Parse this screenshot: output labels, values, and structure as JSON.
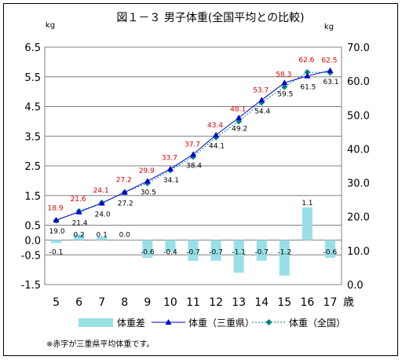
{
  "chart_data": {
    "type": "bar+line",
    "title": "図１－３ 男子体重(全国平均との比較)",
    "left_unit": "kg",
    "right_unit": "kg",
    "x_unit": "歳",
    "categories": [
      5,
      6,
      7,
      8,
      9,
      10,
      11,
      12,
      13,
      14,
      15,
      16,
      17
    ],
    "left_axis": {
      "ticks": [
        "6.5",
        "5.5",
        "4.5",
        "3.5",
        "2.5",
        "1.5",
        "0.5",
        "0.0",
        "-0.5",
        "-1.5"
      ],
      "range": [
        -1.5,
        6.5
      ]
    },
    "right_axis": {
      "ticks": [
        "70.0",
        "60.0",
        "50.0",
        "40.0",
        "30.0",
        "20.0",
        "10.0",
        "0.0"
      ],
      "range": [
        0,
        70
      ]
    },
    "series": [
      {
        "name": "体重差",
        "kind": "bar",
        "axis": "left",
        "values": [
          -0.1,
          0.2,
          0.1,
          0.0,
          -0.6,
          -0.4,
          -0.7,
          -0.7,
          -1.1,
          -0.7,
          -1.2,
          1.1,
          -0.6
        ],
        "labels": [
          "-0.1",
          "0.2",
          "0.1",
          "0.0",
          "-0.6",
          "-0.4",
          "-0.7",
          "-0.7",
          "-1.1",
          "-0.7",
          "-1.2",
          "1.1",
          "-0.6"
        ],
        "color": "#99e0e6"
      },
      {
        "name": "体重（三重県）",
        "kind": "line",
        "axis": "right",
        "values": [
          19.0,
          21.4,
          24.0,
          27.2,
          30.5,
          34.1,
          38.4,
          44.1,
          49.2,
          54.4,
          59.5,
          61.5,
          63.1
        ],
        "labels": [
          "19.0",
          "21.4",
          "24.0",
          "27.2",
          "30.5",
          "34.1",
          "38.4",
          "44.1",
          "49.2",
          "54.4",
          "59.5",
          "61.5",
          "63.1"
        ],
        "color": "#0000cc"
      },
      {
        "name": "体重（全国）",
        "kind": "line",
        "axis": "right",
        "values": [
          18.9,
          21.6,
          24.1,
          27.2,
          29.9,
          33.7,
          37.7,
          43.4,
          48.1,
          53.7,
          58.3,
          62.6,
          62.5
        ],
        "labels": [
          "18.9",
          "21.6",
          "24.1",
          "27.2",
          "29.9",
          "33.7",
          "37.7",
          "43.4",
          "48.1",
          "53.7",
          "58.3",
          "62.6",
          "62.5"
        ],
        "color": "#008080"
      }
    ],
    "footnote": "※赤字が三重県平均体重です。",
    "colors": {
      "national_label": "#e00000",
      "bar": "#99e0e6",
      "mie_line": "#0000cc",
      "national_line": "#008080"
    },
    "grid": true,
    "legend_position": "bottom"
  }
}
